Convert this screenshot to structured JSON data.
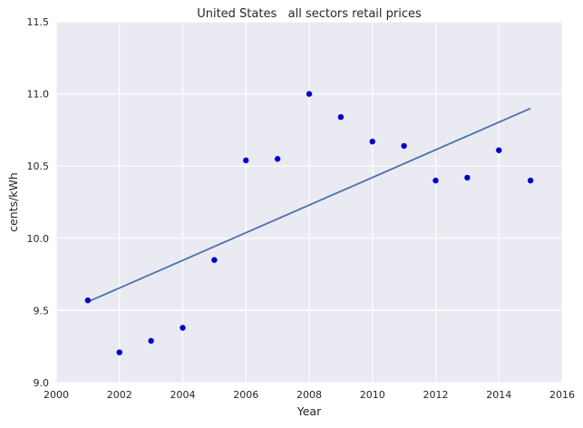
{
  "chart_data": {
    "type": "scatter",
    "title": "United States   all sectors retail prices",
    "xlabel": "Year",
    "ylabel": "cents/kWh",
    "xlim": [
      2000,
      2016
    ],
    "ylim": [
      9.0,
      11.5
    ],
    "xticks": [
      2000,
      2002,
      2004,
      2006,
      2008,
      2010,
      2012,
      2014,
      2016
    ],
    "yticks": [
      9.0,
      9.5,
      10.0,
      10.5,
      11.0,
      11.5
    ],
    "ytick_labels": [
      "9.0",
      "9.5",
      "10.0",
      "10.5",
      "11.0",
      "11.5"
    ],
    "grid": true,
    "series": [
      {
        "kind": "scatter",
        "color": "#0000cc",
        "x": [
          2001,
          2002,
          2003,
          2004,
          2005,
          2006,
          2007,
          2008,
          2009,
          2010,
          2011,
          2012,
          2013,
          2014,
          2015
        ],
        "y": [
          9.57,
          9.21,
          9.29,
          9.38,
          9.85,
          10.54,
          10.55,
          11.0,
          10.84,
          10.67,
          10.64,
          10.4,
          10.42,
          10.61,
          10.4
        ]
      },
      {
        "kind": "line",
        "color": "#4c72b0",
        "x": [
          2001,
          2015
        ],
        "y": [
          9.56,
          10.9
        ]
      }
    ],
    "plot_background": "#eaeaf2",
    "grid_color": "#ffffff"
  }
}
